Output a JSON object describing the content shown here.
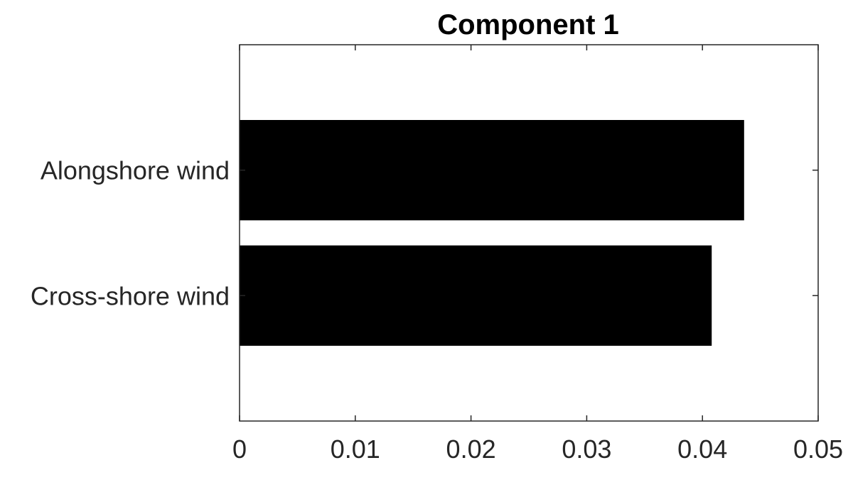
{
  "chart_data": {
    "type": "bar",
    "orientation": "horizontal",
    "title": "Component 1",
    "xlabel": "",
    "ylabel": "",
    "categories": [
      "Alongshore wind",
      "Cross-shore wind"
    ],
    "values": [
      0.0436,
      0.0408
    ],
    "xlim": [
      0,
      0.05
    ],
    "xticks": [
      0,
      0.01,
      0.02,
      0.03,
      0.04,
      0.05
    ],
    "xtick_labels": [
      "0",
      "0.01",
      "0.02",
      "0.03",
      "0.04",
      "0.05"
    ],
    "bar_color": "#000000",
    "axis_color": "#262626",
    "grid": false,
    "legend": "none"
  }
}
